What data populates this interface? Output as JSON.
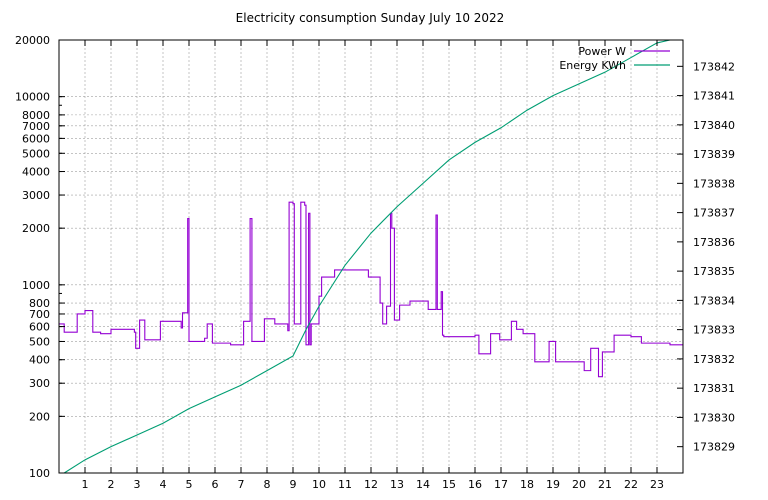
{
  "chart_data": {
    "type": "line",
    "title": "Electricity consumption Sunday July 10 2022",
    "xlim": [
      0,
      24
    ],
    "x_ticks": [
      1,
      2,
      3,
      4,
      5,
      6,
      7,
      8,
      9,
      10,
      11,
      12,
      13,
      14,
      15,
      16,
      17,
      18,
      19,
      20,
      21,
      22,
      23
    ],
    "y_left": {
      "scale": "log",
      "lim": [
        100,
        20000
      ],
      "ticks": [
        100,
        200,
        300,
        400,
        500,
        600,
        700,
        800,
        1000,
        2000,
        3000,
        4000,
        5000,
        6000,
        7000,
        8000,
        10000,
        20000
      ]
    },
    "y_right": {
      "scale": "linear",
      "lim": [
        173828.1,
        173842.9
      ],
      "ticks": [
        173829,
        173830,
        173831,
        173832,
        173833,
        173834,
        173835,
        173836,
        173837,
        173838,
        173839,
        173840,
        173841,
        173842
      ]
    },
    "grid": true,
    "legend": {
      "position": "top-right"
    },
    "series": [
      {
        "name": "Power W",
        "axis": "left",
        "color": "#9400d3",
        "style": "step",
        "points": [
          [
            0,
            620
          ],
          [
            0.2,
            560
          ],
          [
            0.7,
            700
          ],
          [
            1.0,
            730
          ],
          [
            1.3,
            560
          ],
          [
            1.6,
            550
          ],
          [
            2.0,
            580
          ],
          [
            2.9,
            560
          ],
          [
            2.95,
            460
          ],
          [
            3.1,
            650
          ],
          [
            3.3,
            510
          ],
          [
            3.6,
            510
          ],
          [
            3.9,
            640
          ],
          [
            4.5,
            640
          ],
          [
            4.7,
            590
          ],
          [
            4.75,
            710
          ],
          [
            4.95,
            2250
          ],
          [
            5.0,
            500
          ],
          [
            5.6,
            520
          ],
          [
            5.7,
            620
          ],
          [
            5.9,
            490
          ],
          [
            6.4,
            490
          ],
          [
            6.6,
            480
          ],
          [
            7.0,
            480
          ],
          [
            7.1,
            640
          ],
          [
            7.35,
            2250
          ],
          [
            7.42,
            500
          ],
          [
            7.8,
            500
          ],
          [
            7.9,
            660
          ],
          [
            8.3,
            620
          ],
          [
            8.8,
            570
          ],
          [
            8.85,
            2750
          ],
          [
            9.0,
            2700
          ],
          [
            9.05,
            620
          ],
          [
            9.25,
            620
          ],
          [
            9.3,
            2750
          ],
          [
            9.45,
            2650
          ],
          [
            9.5,
            480
          ],
          [
            9.6,
            2400
          ],
          [
            9.65,
            480
          ],
          [
            9.7,
            620
          ],
          [
            10.0,
            870
          ],
          [
            10.1,
            1100
          ],
          [
            10.6,
            1200
          ],
          [
            11.0,
            1200
          ],
          [
            11.5,
            1200
          ],
          [
            11.9,
            1100
          ],
          [
            12.3,
            1100
          ],
          [
            12.35,
            800
          ],
          [
            12.45,
            620
          ],
          [
            12.6,
            770
          ],
          [
            12.75,
            2400
          ],
          [
            12.8,
            2000
          ],
          [
            12.9,
            650
          ],
          [
            13.0,
            650
          ],
          [
            13.1,
            780
          ],
          [
            13.4,
            780
          ],
          [
            13.5,
            820
          ],
          [
            14.1,
            820
          ],
          [
            14.2,
            740
          ],
          [
            14.5,
            2350
          ],
          [
            14.55,
            740
          ],
          [
            14.7,
            920
          ],
          [
            14.75,
            540
          ],
          [
            14.8,
            530
          ],
          [
            15.4,
            530
          ],
          [
            15.8,
            530
          ],
          [
            16.0,
            540
          ],
          [
            16.15,
            430
          ],
          [
            16.5,
            430
          ],
          [
            16.6,
            550
          ],
          [
            16.9,
            550
          ],
          [
            16.95,
            510
          ],
          [
            17.3,
            510
          ],
          [
            17.4,
            640
          ],
          [
            17.6,
            580
          ],
          [
            17.85,
            550
          ],
          [
            18.2,
            550
          ],
          [
            18.3,
            390
          ],
          [
            18.65,
            390
          ],
          [
            18.85,
            500
          ],
          [
            19.05,
            500
          ],
          [
            19.1,
            390
          ],
          [
            19.9,
            390
          ],
          [
            20.1,
            390
          ],
          [
            20.2,
            350
          ],
          [
            20.45,
            460
          ],
          [
            20.7,
            460
          ],
          [
            20.75,
            325
          ],
          [
            20.9,
            440
          ],
          [
            21.3,
            440
          ],
          [
            21.35,
            540
          ],
          [
            22.0,
            530
          ],
          [
            22.3,
            530
          ],
          [
            22.4,
            490
          ],
          [
            23.4,
            490
          ],
          [
            23.5,
            480
          ],
          [
            24.0,
            480
          ]
        ]
      },
      {
        "name": "Energy KWh",
        "axis": "right",
        "color": "#009e73",
        "style": "line",
        "points": [
          [
            0.2,
            173828.1
          ],
          [
            1.0,
            173828.55
          ],
          [
            2.0,
            173829.0
          ],
          [
            3.0,
            173829.4
          ],
          [
            4.0,
            173829.8
          ],
          [
            5.0,
            173830.3
          ],
          [
            6.0,
            173830.7
          ],
          [
            7.0,
            173831.1
          ],
          [
            8.0,
            173831.6
          ],
          [
            9.0,
            173832.1
          ],
          [
            9.5,
            173833.0
          ],
          [
            10.0,
            173833.8
          ],
          [
            10.5,
            173834.5
          ],
          [
            11.0,
            173835.2
          ],
          [
            12.0,
            173836.3
          ],
          [
            13.0,
            173837.2
          ],
          [
            14.0,
            173838.0
          ],
          [
            15.0,
            173838.8
          ],
          [
            16.0,
            173839.4
          ],
          [
            17.0,
            173839.9
          ],
          [
            18.0,
            173840.5
          ],
          [
            19.0,
            173841.0
          ],
          [
            20.0,
            173841.4
          ],
          [
            21.0,
            173841.8
          ],
          [
            22.0,
            173842.3
          ],
          [
            23.0,
            173842.8
          ],
          [
            23.5,
            173843.0
          ]
        ]
      }
    ]
  }
}
